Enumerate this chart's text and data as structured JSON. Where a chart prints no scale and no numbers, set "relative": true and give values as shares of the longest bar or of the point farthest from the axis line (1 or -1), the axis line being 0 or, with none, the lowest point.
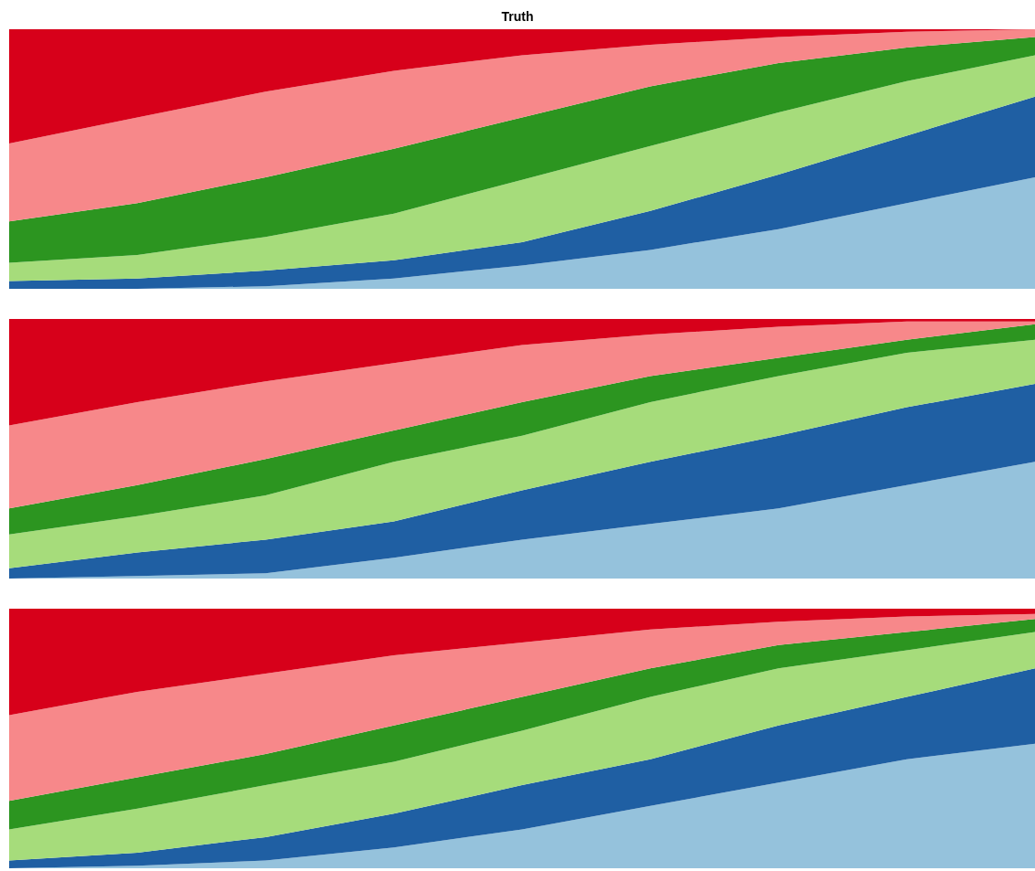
{
  "chart_data": [
    {
      "type": "area",
      "title": "Truth",
      "relative": true,
      "stacked": true,
      "categories": [
        null,
        null,
        null,
        null,
        null,
        null,
        null,
        null,
        null
      ],
      "series": [
        {
          "color": "#95c2dc",
          "values": [
            0,
            0,
            0.01,
            0.04,
            0.09,
            0.15,
            0.23,
            0.33,
            0.43
          ]
        },
        {
          "color": "#1f5fa3",
          "values": [
            0.03,
            0.04,
            0.06,
            0.07,
            0.09,
            0.15,
            0.21,
            0.26,
            0.31
          ]
        },
        {
          "color": "#a6dc7b",
          "values": [
            0.07,
            0.09,
            0.13,
            0.18,
            0.24,
            0.25,
            0.24,
            0.21,
            0.16
          ]
        },
        {
          "color": "#2c9520",
          "values": [
            0.16,
            0.2,
            0.23,
            0.25,
            0.24,
            0.23,
            0.19,
            0.13,
            0.07
          ]
        },
        {
          "color": "#f7888a",
          "values": [
            0.3,
            0.33,
            0.33,
            0.3,
            0.24,
            0.16,
            0.1,
            0.06,
            0.03
          ]
        },
        {
          "color": "#d7001a",
          "values": [
            0.44,
            0.34,
            0.24,
            0.16,
            0.1,
            0.06,
            0.03,
            0.01,
            0.0
          ]
        }
      ]
    },
    {
      "type": "area",
      "relative": true,
      "stacked": true,
      "categories": [
        null,
        null,
        null,
        null,
        null,
        null,
        null,
        null,
        null
      ],
      "series": [
        {
          "color": "#95c2dc",
          "values": [
            0,
            0.01,
            0.02,
            0.08,
            0.15,
            0.21,
            0.27,
            0.36,
            0.45
          ]
        },
        {
          "color": "#1f5fa3",
          "values": [
            0.04,
            0.09,
            0.13,
            0.14,
            0.19,
            0.24,
            0.28,
            0.3,
            0.3
          ]
        },
        {
          "color": "#a6dc7b",
          "values": [
            0.13,
            0.14,
            0.17,
            0.23,
            0.21,
            0.23,
            0.23,
            0.21,
            0.17
          ]
        },
        {
          "color": "#2c9520",
          "values": [
            0.1,
            0.12,
            0.14,
            0.12,
            0.13,
            0.1,
            0.07,
            0.05,
            0.06
          ]
        },
        {
          "color": "#f7888a",
          "values": [
            0.32,
            0.32,
            0.3,
            0.26,
            0.22,
            0.16,
            0.12,
            0.07,
            0.01
          ]
        },
        {
          "color": "#d7001a",
          "values": [
            0.41,
            0.32,
            0.24,
            0.17,
            0.1,
            0.06,
            0.03,
            0.01,
            0.01
          ]
        }
      ]
    },
    {
      "type": "area",
      "relative": true,
      "stacked": true,
      "categories": [
        null,
        null,
        null,
        null,
        null,
        null,
        null,
        null,
        null
      ],
      "series": [
        {
          "color": "#95c2dc",
          "values": [
            0,
            0.01,
            0.03,
            0.08,
            0.15,
            0.24,
            0.33,
            0.42,
            0.48
          ]
        },
        {
          "color": "#1f5fa3",
          "values": [
            0.03,
            0.05,
            0.09,
            0.13,
            0.17,
            0.18,
            0.22,
            0.24,
            0.29
          ]
        },
        {
          "color": "#a6dc7b",
          "values": [
            0.12,
            0.17,
            0.2,
            0.2,
            0.21,
            0.24,
            0.22,
            0.18,
            0.14
          ]
        },
        {
          "color": "#2c9520",
          "values": [
            0.11,
            0.12,
            0.12,
            0.14,
            0.13,
            0.11,
            0.09,
            0.07,
            0.05
          ]
        },
        {
          "color": "#f7888a",
          "values": [
            0.33,
            0.33,
            0.31,
            0.27,
            0.21,
            0.15,
            0.09,
            0.06,
            0.02
          ]
        },
        {
          "color": "#d7001a",
          "values": [
            0.41,
            0.32,
            0.25,
            0.18,
            0.13,
            0.08,
            0.05,
            0.03,
            0.02
          ]
        }
      ]
    }
  ]
}
